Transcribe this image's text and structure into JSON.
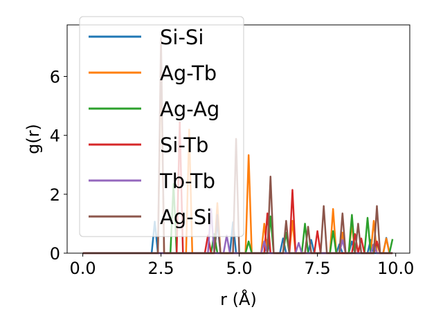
{
  "chart_data": {
    "type": "line",
    "xlabel": "r (Å)",
    "ylabel": "g(r)",
    "xlim": [
      -0.5,
      10.45
    ],
    "ylim": [
      0,
      7.75
    ],
    "xticks": [
      0.0,
      2.5,
      5.0,
      7.5,
      10.0
    ],
    "xtick_labels": [
      "0.0",
      "2.5",
      "5.0",
      "7.5",
      "10.0"
    ],
    "yticks": [
      0,
      2,
      4,
      6
    ],
    "ytick_labels": [
      "0",
      "2",
      "4",
      "6"
    ],
    "grid": false,
    "legend_position": "top-left",
    "series": [
      {
        "name": "Si-Si",
        "color": "#1f77b4",
        "peaks": [
          [
            2.3,
            1.07
          ],
          [
            4.25,
            1.05
          ],
          [
            4.75,
            1.05
          ],
          [
            5.9,
            0.45
          ],
          [
            6.4,
            0.5
          ],
          [
            7.3,
            0.45
          ],
          [
            8.2,
            0.3
          ],
          [
            8.55,
            0.4
          ],
          [
            9.2,
            0.45
          ],
          [
            9.65,
            0.52
          ]
        ]
      },
      {
        "name": "Ag-Tb",
        "color": "#ff7f0e",
        "peaks": [
          [
            2.55,
            6.7
          ],
          [
            3.4,
            4.2
          ],
          [
            4.3,
            1.7
          ],
          [
            5.35,
            3.33
          ],
          [
            5.85,
            1.0
          ],
          [
            6.7,
            1.1
          ],
          [
            7.95,
            1.5
          ],
          [
            8.35,
            0.7
          ],
          [
            8.6,
            1.0
          ],
          [
            9.3,
            1.1
          ],
          [
            9.7,
            0.5
          ]
        ]
      },
      {
        "name": "Ag-Ag",
        "color": "#2ca02c",
        "peaks": [
          [
            2.9,
            2.35
          ],
          [
            4.15,
            0.65
          ],
          [
            5.3,
            0.4
          ],
          [
            6.05,
            1.25
          ],
          [
            6.45,
            0.7
          ],
          [
            7.05,
            1.0
          ],
          [
            7.95,
            0.75
          ],
          [
            8.55,
            1.3
          ],
          [
            9.05,
            1.2
          ],
          [
            9.45,
            0.35
          ],
          [
            9.9,
            0.48
          ]
        ]
      },
      {
        "name": "Si-Tb",
        "color": "#d62728",
        "peaks": [
          [
            3.1,
            4.45
          ],
          [
            4.0,
            0.6
          ],
          [
            5.9,
            1.35
          ],
          [
            6.65,
            2.15
          ],
          [
            7.45,
            0.75
          ],
          [
            8.7,
            0.65
          ],
          [
            8.95,
            0.5
          ],
          [
            9.4,
            0.4
          ]
        ]
      },
      {
        "name": "Tb-Tb",
        "color": "#9467bd",
        "peaks": [
          [
            4.1,
            1.5
          ],
          [
            4.6,
            0.6
          ],
          [
            5.8,
            0.4
          ],
          [
            6.9,
            0.35
          ],
          [
            8.3,
            0.45
          ],
          [
            9.25,
            0.3
          ]
        ]
      },
      {
        "name": "Ag-Si",
        "color": "#8c564b",
        "peaks": [
          [
            2.5,
            7.3
          ],
          [
            4.3,
            1.3
          ],
          [
            4.9,
            3.88
          ],
          [
            6.05,
            2.6
          ],
          [
            6.5,
            1.1
          ],
          [
            7.15,
            0.9
          ],
          [
            7.65,
            1.6
          ],
          [
            8.3,
            1.35
          ],
          [
            8.8,
            1.0
          ],
          [
            9.4,
            1.6
          ]
        ]
      }
    ]
  }
}
